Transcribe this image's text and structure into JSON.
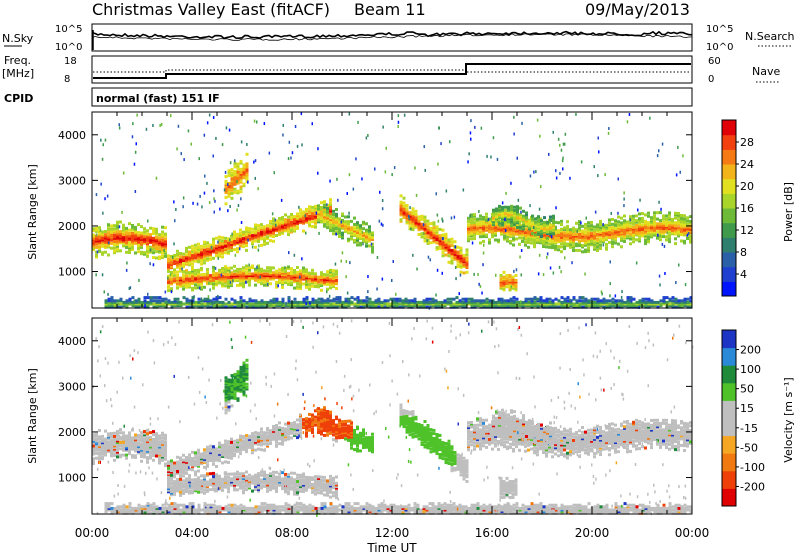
{
  "header": {
    "station": "Christmas Valley East (fitACF)",
    "beam": "Beam 11",
    "date": "09/May/2013"
  },
  "nsky_panel": {
    "label": "N.Sky",
    "right_label": "N.Search",
    "ticks_left": [
      "10^5",
      "10^0"
    ],
    "ticks_right": [
      "10^5",
      "10^0"
    ]
  },
  "freq_panel": {
    "label_line1": "Freq.",
    "label_line2": "[MHz]",
    "ticks_left": [
      "18",
      "8"
    ],
    "ticks_right": [
      "60",
      "0"
    ],
    "right_label": "Nave"
  },
  "cpid_panel": {
    "label": "CPID",
    "mode_text": "normal (fast) 151 IF"
  },
  "chart_data": [
    {
      "type": "heatmap",
      "panel": "power",
      "ylabel": "Slant Range [km]",
      "ylim": [
        200,
        4500
      ],
      "xlim_hours": [
        0,
        24
      ],
      "ytick_labels": [
        "1000",
        "2000",
        "3000",
        "4000"
      ],
      "colorbar_label": "Power [dB]",
      "colorbar_ticks": [
        "4",
        "8",
        "12",
        "16",
        "20",
        "24",
        "28"
      ],
      "colorbar_colors": [
        "#0015ff",
        "#1f3fd0",
        "#2a60a8",
        "#2f7f6e",
        "#3f9a4c",
        "#6dba38",
        "#a9d42a",
        "#e0e020",
        "#f3b41a",
        "#f57a14",
        "#f3400f",
        "#e00008"
      ]
    },
    {
      "type": "heatmap",
      "panel": "velocity",
      "ylabel": "Slant Range [km]",
      "ylim": [
        200,
        4500
      ],
      "xlim_hours": [
        0,
        24
      ],
      "ytick_labels": [
        "1000",
        "2000",
        "3000",
        "4000"
      ],
      "colorbar_label": "Velocity [m s⁻¹]",
      "colorbar_ticks": [
        "200",
        "100",
        "50",
        "15",
        "-15",
        "-50",
        "-100",
        "-200"
      ],
      "colorbar_colors": [
        "#1c35c4",
        "#2a8ad8",
        "#1e8a3a",
        "#4fc22a",
        "#bfbfbf",
        "#bfbfbf",
        "#f5a623",
        "#f07a10",
        "#ee4008",
        "#e00000"
      ]
    }
  ],
  "x_axis": {
    "tick_labels": [
      "00:00",
      "04:00",
      "08:00",
      "12:00",
      "16:00",
      "20:00",
      "00:00"
    ],
    "label": "Time UT"
  }
}
